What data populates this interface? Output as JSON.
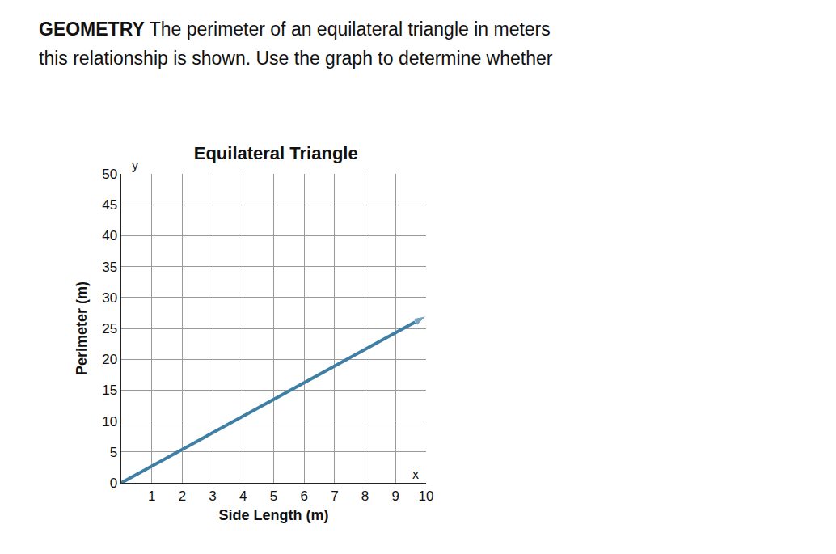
{
  "chart_data": {
    "type": "line",
    "title": "Equilateral Triangle",
    "subtitle": [
      "GEOMETRY The perimeter of an equilateral triangle in meters",
      "this relationship is shown. Use the graph to determine whether"
    ],
    "x_label": "Side Length (m)",
    "y_label": "Perimeter (m)",
    "annotations": [
      {
        "text": "x",
        "x": 9.5,
        "y": 0
      },
      {
        "text": "y",
        "x": 0.3,
        "y": 50
      }
    ],
    "x": [
      0,
      10
    ],
    "values": [
      0,
      27
    ],
    "color": "#3f7fa6",
    "marker": "arrow",
    "xlim": [
      0,
      10
    ],
    "xticks": [
      1,
      2,
      3,
      4,
      5,
      6,
      7,
      8,
      9,
      10
    ],
    "ylim": [
      0,
      50
    ],
    "yticks": [
      0,
      5,
      10,
      15,
      20,
      25,
      30,
      35,
      40,
      45,
      50
    ],
    "grid": true
  }
}
